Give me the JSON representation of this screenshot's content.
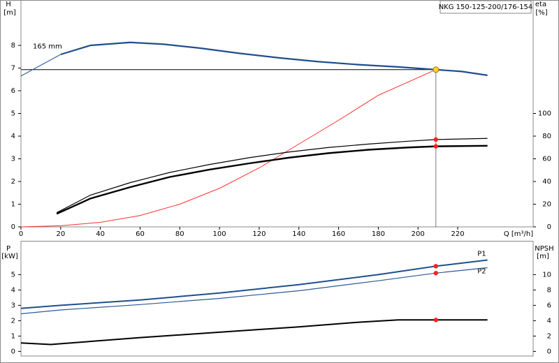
{
  "chart_data": [
    {
      "type": "line",
      "title": "NKG 150-125-200/176-154",
      "y_label": "H",
      "y_unit": "[m]",
      "y2_label": "eta",
      "y2_unit": "[%]",
      "x_label": "Q [m³/h]",
      "annotation": "165 mm",
      "xlim": [
        0,
        258
      ],
      "xticks": [
        0,
        20,
        40,
        60,
        80,
        100,
        120,
        140,
        160,
        180,
        200,
        220
      ],
      "ylim": [
        0,
        10
      ],
      "yticks": [
        0,
        1,
        2,
        3,
        4,
        5,
        6,
        7,
        8
      ],
      "y2lim": [
        0,
        200
      ],
      "y2ticks": [
        0,
        20,
        40,
        60,
        80,
        100
      ],
      "series": [
        {
          "color": "#2a5a9a",
          "width": 1,
          "x": [
            0,
            20
          ],
          "values": [
            6.65,
            7.6
          ]
        },
        {
          "color": "#1f4e8c",
          "width": 2.2,
          "x": [
            20,
            35,
            55,
            72,
            90,
            110,
            130,
            150,
            170,
            190,
            209,
            222,
            235
          ],
          "values": [
            7.6,
            8.0,
            8.13,
            8.05,
            7.88,
            7.65,
            7.45,
            7.28,
            7.15,
            7.05,
            6.93,
            6.85,
            6.68
          ]
        },
        {
          "color": "#ff3030",
          "width": 1,
          "x": [
            0,
            20,
            40,
            60,
            80,
            100,
            120,
            140,
            160,
            180,
            209
          ],
          "values": [
            0,
            0.05,
            0.2,
            0.5,
            1.0,
            1.7,
            2.6,
            3.65,
            4.7,
            5.8,
            6.93
          ]
        },
        {
          "color": "#000000",
          "width": 1.2,
          "axis": "y2",
          "x": [
            18,
            35,
            55,
            75,
            95,
            115,
            135,
            155,
            175,
            195,
            209,
            235
          ],
          "values": [
            12.5,
            28,
            39,
            48,
            55,
            61,
            66,
            70,
            73,
            75.5,
            77,
            78
          ]
        },
        {
          "color": "#000000",
          "width": 2.4,
          "axis": "y2",
          "x": [
            18,
            35,
            55,
            75,
            95,
            115,
            135,
            155,
            175,
            195,
            209,
            235
          ],
          "values": [
            11.5,
            25,
            35,
            44,
            50.5,
            56,
            61,
            65,
            68,
            70,
            71,
            71.5
          ]
        }
      ],
      "points": [
        {
          "x": 209,
          "y": 6.93,
          "color": "#ffd02a",
          "guide": true
        },
        {
          "x": 209,
          "y": 77,
          "color": "#ff2020",
          "axis": "y2"
        },
        {
          "x": 209,
          "y": 71,
          "color": "#ff2020",
          "axis": "y2"
        }
      ]
    },
    {
      "type": "line",
      "y_label": "P",
      "y_unit": "[kW]",
      "y2_label": "NPSH",
      "y2_unit": "[m]",
      "xlim": [
        0,
        258
      ],
      "ylim": [
        -0.3,
        7.2
      ],
      "yticks": [
        0,
        1,
        2,
        3,
        4,
        5
      ],
      "y2lim": [
        -0.6,
        14.4
      ],
      "y2ticks": [
        0,
        2,
        4,
        6,
        8,
        10
      ],
      "series": [
        {
          "name": "P1",
          "color": "#1f4e8c",
          "width": 2,
          "x": [
            0,
            20,
            60,
            100,
            140,
            180,
            209,
            235
          ],
          "values": [
            2.8,
            3.0,
            3.35,
            3.8,
            4.35,
            5.0,
            5.55,
            5.95
          ]
        },
        {
          "name": "P2",
          "color": "#2a5a9a",
          "width": 1.2,
          "x": [
            0,
            20,
            60,
            100,
            140,
            180,
            209,
            235
          ],
          "values": [
            2.45,
            2.7,
            3.05,
            3.45,
            3.95,
            4.6,
            5.1,
            5.45
          ]
        },
        {
          "color": "#000000",
          "width": 2,
          "axis": "y2",
          "x": [
            0,
            15,
            20,
            60,
            100,
            140,
            170,
            190,
            209,
            235
          ],
          "values": [
            1.1,
            0.9,
            1.0,
            1.8,
            2.5,
            3.2,
            3.8,
            4.1,
            4.1,
            4.1
          ]
        }
      ],
      "points": [
        {
          "x": 209,
          "y": 5.55,
          "color": "#ff2020"
        },
        {
          "x": 209,
          "y": 5.1,
          "color": "#ff2020"
        },
        {
          "x": 209,
          "y": 4.1,
          "color": "#ff2020",
          "axis": "y2"
        }
      ]
    }
  ]
}
